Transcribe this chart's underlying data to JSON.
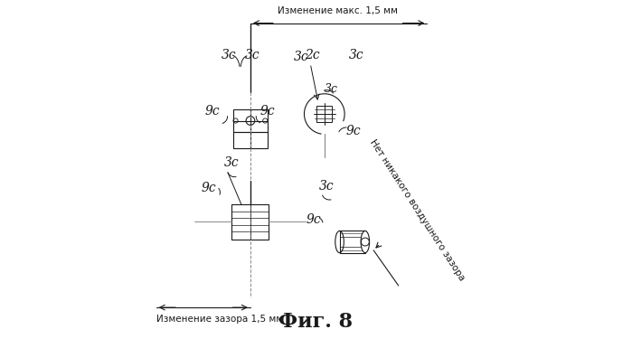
{
  "title": "Фиг. 8",
  "title_fontsize": 16,
  "bg_color": "#ffffff",
  "line_color": "#1a1a1a",
  "text_color": "#1a1a1a",
  "top_arrow_text": "Изменение макс. 1,5 мм",
  "bottom_arrow_text": "Изменение зазора 1,5 мм",
  "right_text": "Нет никакого воздушного зазора"
}
